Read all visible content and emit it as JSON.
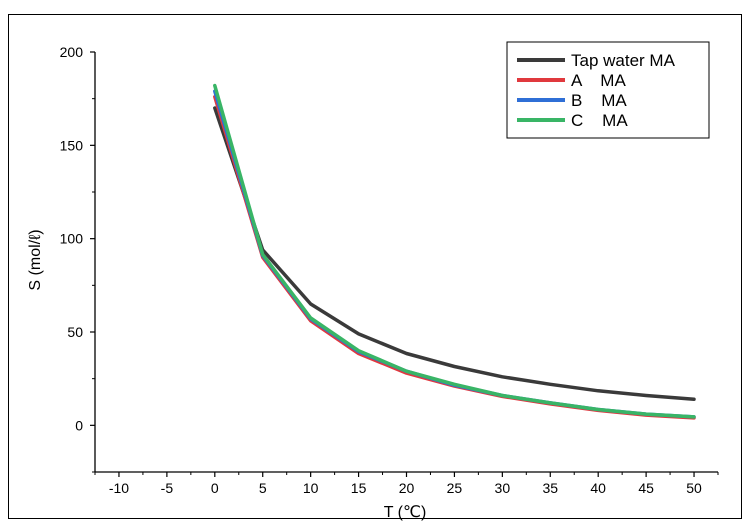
{
  "chart_data": {
    "type": "line",
    "title": "",
    "xlabel": "T (℃)",
    "ylabel": "S (mol/ℓ)",
    "xlim": [
      -12.5,
      52.5
    ],
    "ylim": [
      -25,
      200
    ],
    "x_ticks": [
      -10,
      -5,
      0,
      5,
      10,
      15,
      20,
      25,
      30,
      35,
      40,
      45,
      50
    ],
    "y_ticks": [
      0,
      50,
      100,
      150,
      200
    ],
    "grid": false,
    "legend_position": "top-right",
    "x": [
      0,
      5,
      10,
      15,
      20,
      25,
      30,
      35,
      40,
      45,
      50
    ],
    "series": [
      {
        "name": "Tap water MA",
        "color": "#3a3a3a",
        "values": [
          170,
          94,
          65,
          49,
          38.5,
          31.5,
          26,
          22,
          18.5,
          16,
          14
        ]
      },
      {
        "name": "A    MA",
        "color": "#e0393e",
        "values": [
          176,
          90,
          56,
          38.5,
          28,
          21,
          15.5,
          11.5,
          8,
          5.5,
          4
        ]
      },
      {
        "name": "B    MA",
        "color": "#2f6fd6",
        "values": [
          179,
          91,
          57,
          39.5,
          29,
          21.5,
          16,
          12,
          8.5,
          6,
          4.5
        ]
      },
      {
        "name": "C    MA",
        "color": "#39b566",
        "values": [
          182,
          91.5,
          57.5,
          40,
          29,
          22,
          16,
          12,
          8.5,
          6,
          4.5
        ]
      }
    ]
  }
}
